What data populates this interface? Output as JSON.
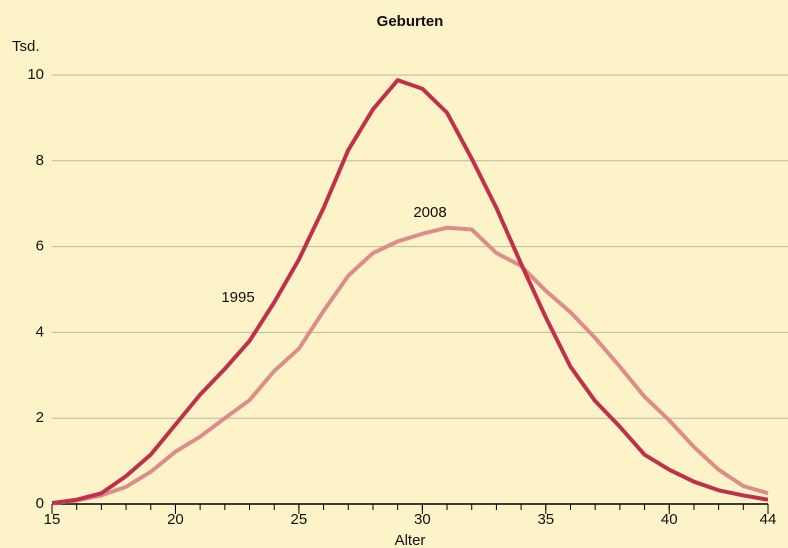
{
  "chart_data": {
    "type": "line",
    "title": "Geburten",
    "y_label": "Tsd.",
    "x_label": "Alter",
    "x": [
      15,
      16,
      17,
      18,
      19,
      20,
      21,
      22,
      23,
      24,
      25,
      26,
      27,
      28,
      29,
      30,
      31,
      32,
      33,
      34,
      35,
      36,
      37,
      38,
      39,
      40,
      41,
      42,
      43,
      44
    ],
    "series": [
      {
        "name": "1995",
        "color": "#c1304b",
        "values": [
          0.02,
          0.1,
          0.25,
          0.65,
          1.15,
          1.85,
          2.55,
          3.15,
          3.8,
          4.7,
          5.7,
          6.9,
          8.25,
          9.2,
          9.88,
          9.68,
          9.12,
          8.05,
          6.9,
          5.6,
          4.35,
          3.2,
          2.4,
          1.8,
          1.15,
          0.8,
          0.52,
          0.32,
          0.2,
          0.1
        ]
      },
      {
        "name": "2008",
        "color": "#de8b8b",
        "values": [
          0.02,
          0.08,
          0.2,
          0.4,
          0.75,
          1.22,
          1.57,
          2.0,
          2.42,
          3.1,
          3.62,
          4.5,
          5.32,
          5.85,
          6.12,
          6.3,
          6.44,
          6.4,
          5.85,
          5.55,
          4.97,
          4.47,
          3.87,
          3.2,
          2.5,
          1.95,
          1.33,
          0.8,
          0.42,
          0.25
        ]
      }
    ],
    "xlim": [
      15,
      44
    ],
    "xticks": [
      15,
      20,
      25,
      30,
      35,
      40,
      44
    ],
    "ylim": [
      0,
      10
    ],
    "yticks": [
      0,
      2,
      4,
      6,
      8,
      10
    ],
    "grid": true
  }
}
